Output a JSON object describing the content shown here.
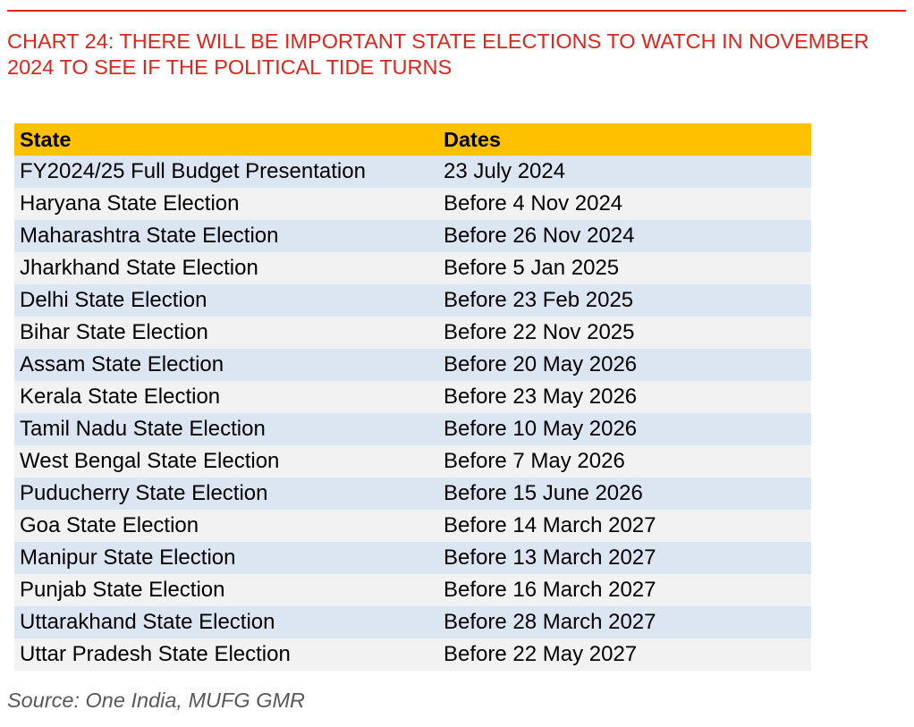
{
  "title": "CHART 24: THERE WILL BE IMPORTANT STATE ELECTIONS TO WATCH IN NOVEMBER 2024 TO SEE IF THE POLITICAL TIDE TURNS",
  "table": {
    "headers": [
      "State",
      "Dates"
    ],
    "rows": [
      [
        "FY2024/25 Full Budget Presentation",
        "23 July 2024"
      ],
      [
        "Haryana  State Election",
        "Before 4 Nov 2024"
      ],
      [
        "Maharashtra State Election",
        "Before 26 Nov 2024"
      ],
      [
        "Jharkhand State Election",
        "Before 5 Jan 2025"
      ],
      [
        "Delhi State Election",
        "Before 23 Feb 2025"
      ],
      [
        "Bihar State Election",
        "Before 22 Nov 2025"
      ],
      [
        "Assam State Election",
        "Before 20 May 2026"
      ],
      [
        "Kerala State Election",
        "Before 23 May 2026"
      ],
      [
        "Tamil Nadu State Election",
        "Before 10 May 2026"
      ],
      [
        "West Bengal State Election",
        "Before 7 May 2026"
      ],
      [
        "Puducherry State Election",
        "Before 15 June 2026"
      ],
      [
        "Goa State Election",
        "Before 14 March 2027"
      ],
      [
        "Manipur State Election",
        "Before 13 March 2027"
      ],
      [
        "Punjab State Election",
        "Before 16 March 2027"
      ],
      [
        "Uttarakhand State Election",
        "Before 28 March 2027"
      ],
      [
        "Uttar Pradesh State Election",
        "Before 22 May 2027"
      ]
    ]
  },
  "source": "Source: One India, MUFG GMR",
  "colors": {
    "title": "#e2231a",
    "header_bg": "#ffc000",
    "row_blue": "#dce6f2",
    "row_grey": "#f2f2f2",
    "source": "#595959"
  }
}
